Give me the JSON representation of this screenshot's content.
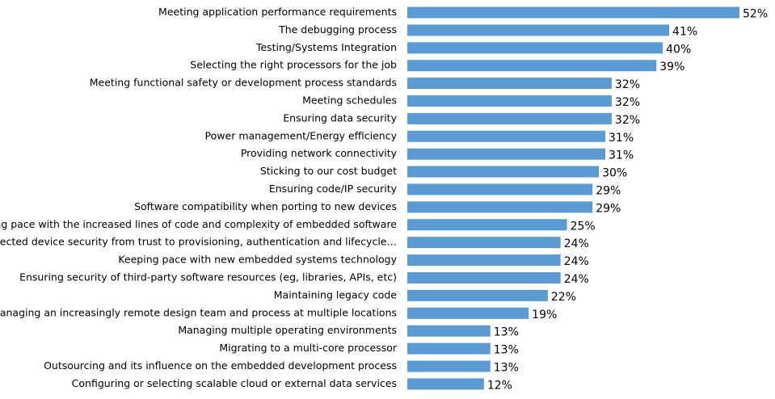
{
  "chart_data": {
    "type": "bar",
    "orientation": "horizontal",
    "color": "#5b9bd5",
    "categories": [
      "Meeting application performance requirements",
      "The debugging process",
      "Testing/Systems Integration",
      "Selecting the right processors for the job",
      "Meeting functional safety or development process standards",
      "Meeting schedules",
      "Ensuring data security",
      "Power management/Energy efficiency",
      "Providing network connectivity",
      "Sticking to our cost budget",
      "Ensuring code/IP security",
      "Software compatibility when porting to new devices",
      "Keeping pace with the increased lines of code and complexity of embedded software",
      "Connected device security from trust to provisioning, authentication and lifecycle…",
      "Keeping pace with new embedded systems technology",
      "Ensuring security of third-party software resources (eg, libraries, APIs, etc)",
      "Maintaining legacy code",
      "Managing an increasingly remote design team and process at multiple locations",
      "Managing multiple operating environments",
      "Migrating to a multi-core processor",
      "Outsourcing and its influence on the embedded development process",
      "Configuring or selecting scalable cloud or external data services"
    ],
    "values": [
      52,
      41,
      40,
      39,
      32,
      32,
      32,
      31,
      31,
      30,
      29,
      29,
      25,
      24,
      24,
      24,
      22,
      19,
      13,
      13,
      13,
      12
    ],
    "value_labels": [
      "52%",
      "41%",
      "40%",
      "39%",
      "32%",
      "32%",
      "32%",
      "31%",
      "31%",
      "30%",
      "29%",
      "29%",
      "25%",
      "24%",
      "24%",
      "24%",
      "22%",
      "19%",
      "13%",
      "13%",
      "13%",
      "12%"
    ]
  }
}
